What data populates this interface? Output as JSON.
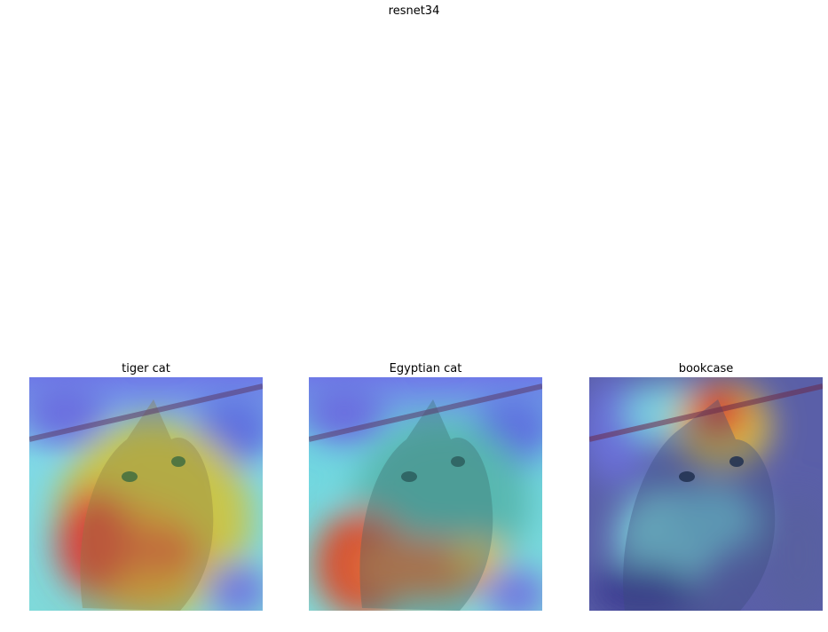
{
  "figure": {
    "title": "resnet34"
  },
  "panels": [
    {
      "label": "tiger cat"
    },
    {
      "label": "Egyptian cat"
    },
    {
      "label": "bookcase"
    }
  ]
}
